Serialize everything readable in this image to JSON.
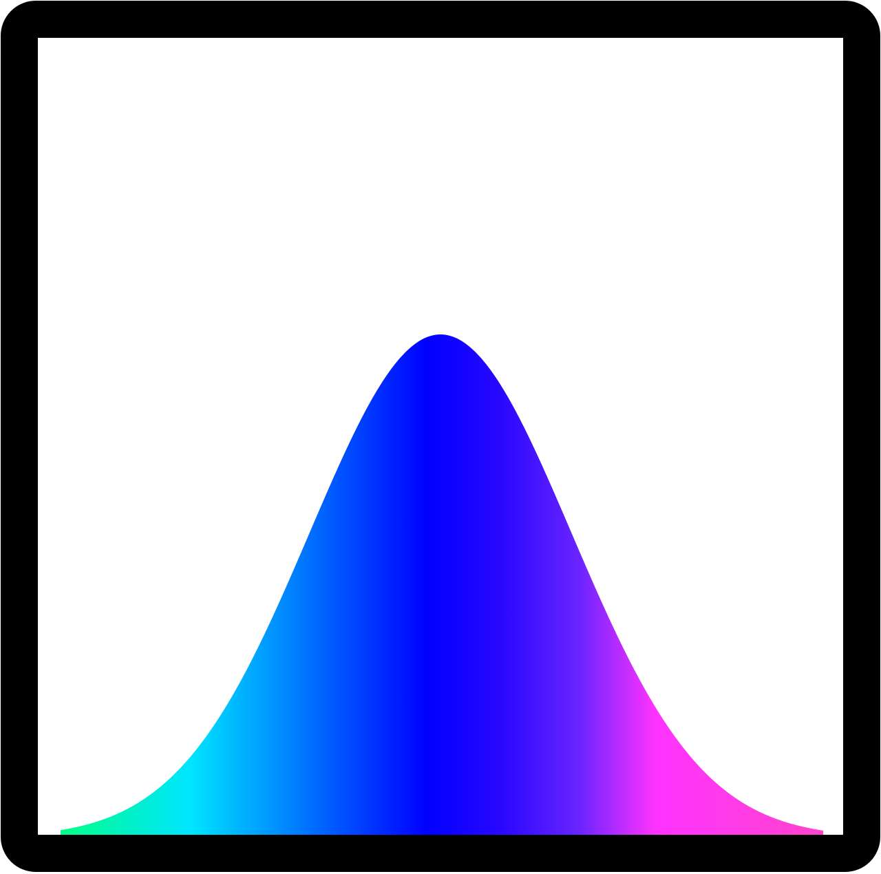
{
  "icon": {
    "name": "gaussian-distribution-icon",
    "shape": "bell curve inside square frame",
    "frame_color": "#000000",
    "background_color": "#ffffff",
    "gradient_stops": [
      {
        "offset": 0.0,
        "color": "#00ff88"
      },
      {
        "offset": 0.17,
        "color": "#00e5ff"
      },
      {
        "offset": 0.34,
        "color": "#0066ff"
      },
      {
        "offset": 0.48,
        "color": "#0000ff"
      },
      {
        "offset": 0.58,
        "color": "#2a08ff"
      },
      {
        "offset": 0.68,
        "color": "#6a24ff"
      },
      {
        "offset": 0.78,
        "color": "#ff33ff"
      },
      {
        "offset": 1.0,
        "color": "#ff44cc"
      }
    ]
  }
}
